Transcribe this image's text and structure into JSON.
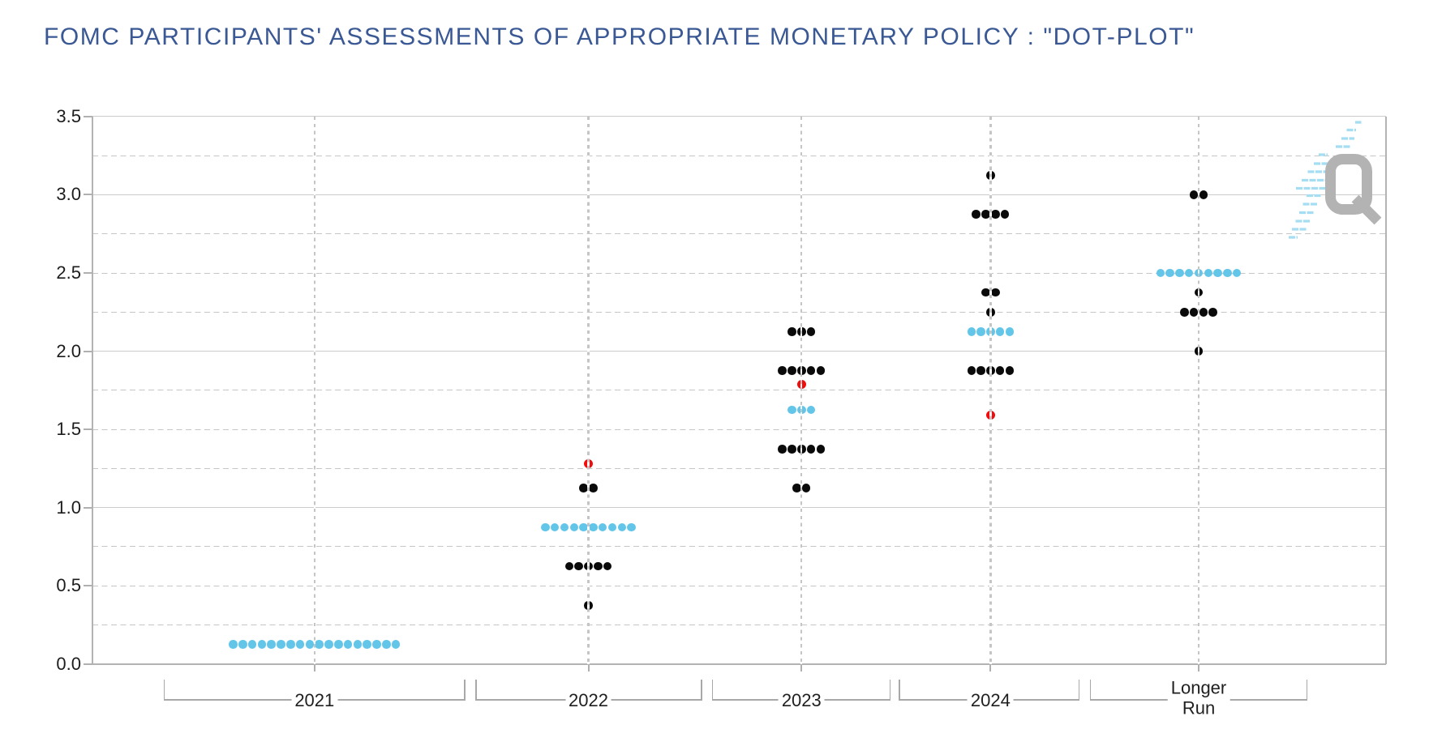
{
  "title": "FOMC PARTICIPANTS' ASSESSMENTS OF APPROPRIATE MONETARY POLICY : \"DOT-PLOT\"",
  "watermark": {
    "glyph": "Q"
  },
  "colors": {
    "title": "#3a5894",
    "dot_black": "#0a0a0a",
    "dot_median_blue": "#63c6e9",
    "dot_market_red": "#f20d0d",
    "gridline": "#c9c9c9",
    "watermark_gray": "#b3b3b3",
    "watermark_blue": "#a5ddf3"
  },
  "chart_data": {
    "type": "scatter",
    "subtype": "fomc-dot-plot",
    "title": "FOMC PARTICIPANTS' ASSESSMENTS OF APPROPRIATE MONETARY POLICY : \"DOT-PLOT\"",
    "xlabel": "",
    "ylabel": "",
    "ylim": [
      0.0,
      3.5
    ],
    "ytick_labels": [
      "0.0",
      "0.5",
      "1.0",
      "1.5",
      "2.0",
      "2.5",
      "3.0",
      "3.5"
    ],
    "grid": "solid horizontal lines at integers, dashed at quarter steps, dashed vertical line at each category center",
    "legend_position": "none",
    "categories": [
      "2021",
      "2022",
      "2023",
      "2024",
      "Longer Run"
    ],
    "series": [
      {
        "name": "2021",
        "dots": [
          {
            "rate": 0.125,
            "count": 18,
            "median": true
          }
        ]
      },
      {
        "name": "2022",
        "dots": [
          {
            "rate": 1.125,
            "count": 2
          },
          {
            "rate": 0.875,
            "count": 10,
            "median": true
          },
          {
            "rate": 0.625,
            "count": 5
          },
          {
            "rate": 0.375,
            "count": 1
          }
        ],
        "red_dot_rate": 1.28
      },
      {
        "name": "2023",
        "dots": [
          {
            "rate": 2.125,
            "count": 3
          },
          {
            "rate": 1.875,
            "count": 5
          },
          {
            "rate": 1.625,
            "count": 3,
            "median": true
          },
          {
            "rate": 1.375,
            "count": 5
          },
          {
            "rate": 1.125,
            "count": 2
          }
        ],
        "red_dot_rate": 1.79
      },
      {
        "name": "2024",
        "dots": [
          {
            "rate": 3.125,
            "count": 1
          },
          {
            "rate": 2.875,
            "count": 4
          },
          {
            "rate": 2.375,
            "count": 2
          },
          {
            "rate": 2.25,
            "count": 1
          },
          {
            "rate": 2.125,
            "count": 5,
            "median": true
          },
          {
            "rate": 1.875,
            "count": 5
          }
        ],
        "red_dot_rate": 1.59
      },
      {
        "name": "Longer Run",
        "dots": [
          {
            "rate": 3.0,
            "count": 2
          },
          {
            "rate": 2.5,
            "count": 9,
            "median": true
          },
          {
            "rate": 2.375,
            "count": 1
          },
          {
            "rate": 2.25,
            "count": 4
          },
          {
            "rate": 2.0,
            "count": 1
          }
        ]
      }
    ]
  }
}
